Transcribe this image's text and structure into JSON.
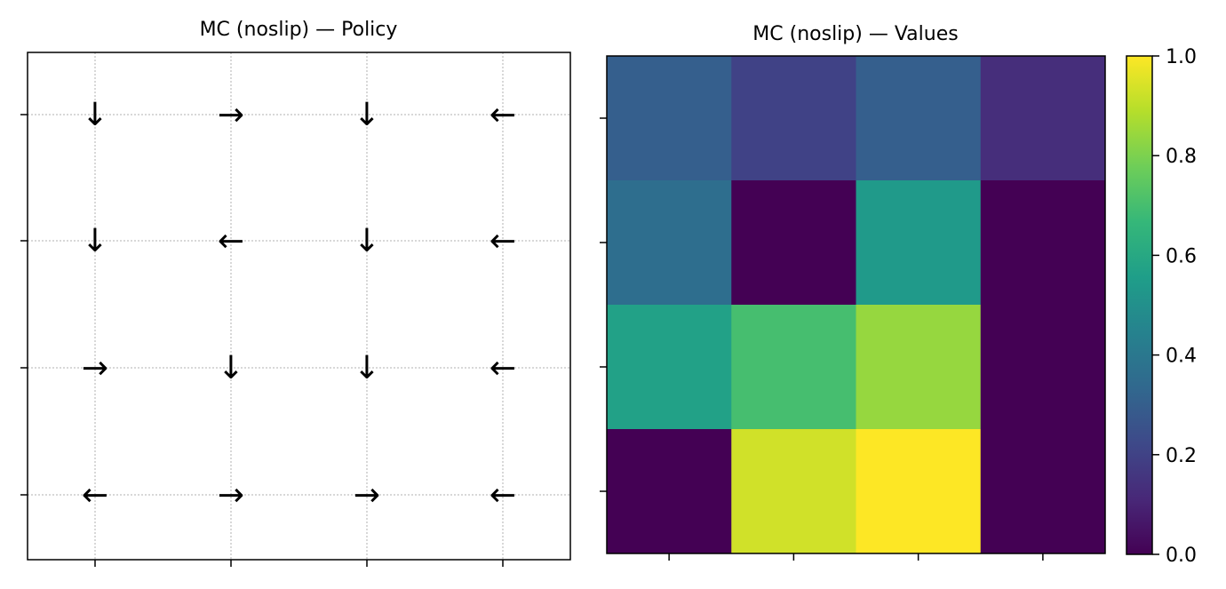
{
  "chart_data": [
    {
      "type": "table",
      "title": "MC (noslip) — Policy",
      "grid": true,
      "rows": 4,
      "cols": 4,
      "arrows": [
        [
          "↓",
          "→",
          "↓",
          "←"
        ],
        [
          "↓",
          "←",
          "↓",
          "←"
        ],
        [
          "→",
          "↓",
          "↓",
          "←"
        ],
        [
          "←",
          "→",
          "→",
          "←"
        ]
      ]
    },
    {
      "type": "heatmap",
      "title": "MC (noslip) — Values",
      "colormap": "viridis",
      "rows": 4,
      "cols": 4,
      "values": [
        [
          0.3,
          0.2,
          0.3,
          0.13
        ],
        [
          0.36,
          0.0,
          0.54,
          0.0
        ],
        [
          0.57,
          0.7,
          0.84,
          0.0
        ],
        [
          0.0,
          0.93,
          1.0,
          0.0
        ]
      ],
      "colorbar": {
        "range": [
          0.0,
          1.0
        ],
        "ticks": [
          "0.0",
          "0.2",
          "0.4",
          "0.6",
          "0.8",
          "1.0"
        ]
      }
    }
  ]
}
